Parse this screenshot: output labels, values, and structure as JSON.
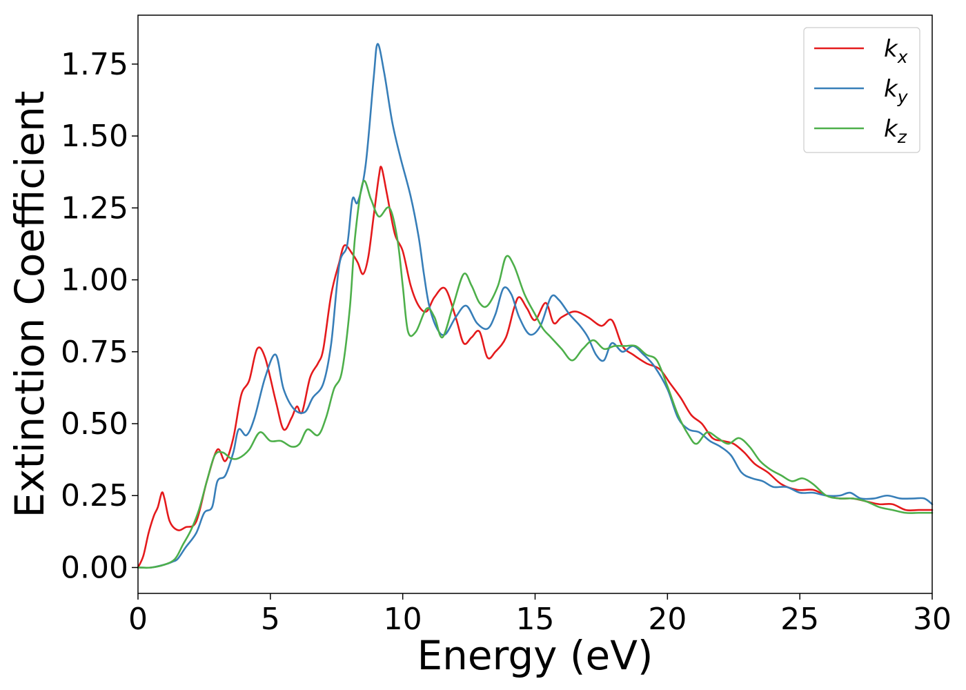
{
  "chart_data": {
    "type": "line",
    "xlabel": "Energy (eV)",
    "ylabel": "Extinction Coefficient",
    "xlim": [
      0,
      30
    ],
    "ylim": [
      -0.09,
      1.92
    ],
    "xticks": [
      0,
      5,
      10,
      15,
      20,
      25,
      30
    ],
    "xtick_labels": [
      "0",
      "5",
      "10",
      "15",
      "20",
      "25",
      "30"
    ],
    "yticks": [
      0.0,
      0.25,
      0.5,
      0.75,
      1.0,
      1.25,
      1.5,
      1.75
    ],
    "ytick_labels": [
      "0.00",
      "0.25",
      "0.50",
      "0.75",
      "1.00",
      "1.25",
      "1.50",
      "1.75"
    ],
    "grid": false,
    "legend_position": "top-right",
    "series": [
      {
        "name": "k_x",
        "label_base": "k",
        "label_sub": "x",
        "color": "#e41a1c",
        "points": [
          [
            0,
            0.0
          ],
          [
            0.2,
            0.04
          ],
          [
            0.4,
            0.12
          ],
          [
            0.6,
            0.18
          ],
          [
            0.75,
            0.21
          ],
          [
            0.9,
            0.26
          ],
          [
            1.0,
            0.24
          ],
          [
            1.2,
            0.16
          ],
          [
            1.5,
            0.13
          ],
          [
            1.8,
            0.14
          ],
          [
            2.2,
            0.16
          ],
          [
            2.6,
            0.3
          ],
          [
            3.0,
            0.41
          ],
          [
            3.3,
            0.37
          ],
          [
            3.6,
            0.45
          ],
          [
            3.9,
            0.6
          ],
          [
            4.2,
            0.65
          ],
          [
            4.5,
            0.76
          ],
          [
            4.8,
            0.73
          ],
          [
            5.2,
            0.58
          ],
          [
            5.5,
            0.48
          ],
          [
            5.8,
            0.52
          ],
          [
            6.0,
            0.56
          ],
          [
            6.2,
            0.54
          ],
          [
            6.5,
            0.66
          ],
          [
            6.8,
            0.71
          ],
          [
            7.0,
            0.76
          ],
          [
            7.3,
            0.95
          ],
          [
            7.6,
            1.06
          ],
          [
            7.8,
            1.12
          ],
          [
            8.1,
            1.09
          ],
          [
            8.3,
            1.06
          ],
          [
            8.5,
            1.02
          ],
          [
            8.7,
            1.08
          ],
          [
            8.9,
            1.22
          ],
          [
            9.1,
            1.36
          ],
          [
            9.2,
            1.39
          ],
          [
            9.4,
            1.3
          ],
          [
            9.7,
            1.16
          ],
          [
            10.0,
            1.1
          ],
          [
            10.3,
            0.98
          ],
          [
            10.6,
            0.91
          ],
          [
            10.9,
            0.89
          ],
          [
            11.2,
            0.94
          ],
          [
            11.6,
            0.97
          ],
          [
            12.0,
            0.87
          ],
          [
            12.3,
            0.78
          ],
          [
            12.6,
            0.8
          ],
          [
            12.9,
            0.82
          ],
          [
            13.2,
            0.73
          ],
          [
            13.5,
            0.75
          ],
          [
            13.9,
            0.8
          ],
          [
            14.2,
            0.9
          ],
          [
            14.4,
            0.94
          ],
          [
            14.7,
            0.9
          ],
          [
            15.0,
            0.86
          ],
          [
            15.4,
            0.92
          ],
          [
            15.7,
            0.85
          ],
          [
            16.0,
            0.87
          ],
          [
            16.5,
            0.89
          ],
          [
            17.0,
            0.87
          ],
          [
            17.5,
            0.84
          ],
          [
            17.9,
            0.86
          ],
          [
            18.3,
            0.77
          ],
          [
            18.7,
            0.74
          ],
          [
            19.2,
            0.71
          ],
          [
            19.7,
            0.69
          ],
          [
            20.1,
            0.64
          ],
          [
            20.5,
            0.59
          ],
          [
            20.9,
            0.53
          ],
          [
            21.3,
            0.5
          ],
          [
            21.7,
            0.45
          ],
          [
            22.1,
            0.44
          ],
          [
            22.5,
            0.43
          ],
          [
            22.9,
            0.4
          ],
          [
            23.3,
            0.36
          ],
          [
            23.8,
            0.33
          ],
          [
            24.3,
            0.29
          ],
          [
            24.9,
            0.27
          ],
          [
            25.5,
            0.27
          ],
          [
            26.0,
            0.25
          ],
          [
            26.5,
            0.24
          ],
          [
            27.0,
            0.24
          ],
          [
            27.5,
            0.23
          ],
          [
            28.0,
            0.22
          ],
          [
            28.5,
            0.22
          ],
          [
            29.0,
            0.2
          ],
          [
            29.5,
            0.2
          ],
          [
            30.0,
            0.2
          ]
        ]
      },
      {
        "name": "k_y",
        "label_base": "k",
        "label_sub": "y",
        "color": "#377eb8",
        "points": [
          [
            0,
            0.0
          ],
          [
            0.5,
            0.0
          ],
          [
            1.0,
            0.01
          ],
          [
            1.3,
            0.02
          ],
          [
            1.5,
            0.03
          ],
          [
            1.8,
            0.07
          ],
          [
            2.2,
            0.12
          ],
          [
            2.5,
            0.19
          ],
          [
            2.8,
            0.21
          ],
          [
            3.0,
            0.3
          ],
          [
            3.3,
            0.32
          ],
          [
            3.6,
            0.4
          ],
          [
            3.8,
            0.48
          ],
          [
            4.1,
            0.46
          ],
          [
            4.4,
            0.52
          ],
          [
            4.8,
            0.66
          ],
          [
            5.2,
            0.74
          ],
          [
            5.5,
            0.62
          ],
          [
            5.9,
            0.55
          ],
          [
            6.3,
            0.54
          ],
          [
            6.6,
            0.59
          ],
          [
            7.0,
            0.64
          ],
          [
            7.3,
            0.78
          ],
          [
            7.6,
            1.05
          ],
          [
            7.9,
            1.12
          ],
          [
            8.1,
            1.28
          ],
          [
            8.3,
            1.27
          ],
          [
            8.6,
            1.4
          ],
          [
            8.9,
            1.7
          ],
          [
            9.05,
            1.82
          ],
          [
            9.3,
            1.72
          ],
          [
            9.6,
            1.55
          ],
          [
            9.9,
            1.43
          ],
          [
            10.3,
            1.29
          ],
          [
            10.6,
            1.15
          ],
          [
            10.8,
            1.02
          ],
          [
            11.0,
            0.91
          ],
          [
            11.3,
            0.83
          ],
          [
            11.6,
            0.81
          ],
          [
            12.0,
            0.87
          ],
          [
            12.4,
            0.91
          ],
          [
            12.8,
            0.85
          ],
          [
            13.2,
            0.83
          ],
          [
            13.5,
            0.88
          ],
          [
            13.8,
            0.97
          ],
          [
            14.1,
            0.95
          ],
          [
            14.4,
            0.87
          ],
          [
            14.8,
            0.81
          ],
          [
            15.2,
            0.84
          ],
          [
            15.6,
            0.94
          ],
          [
            15.9,
            0.93
          ],
          [
            16.3,
            0.88
          ],
          [
            16.7,
            0.84
          ],
          [
            17.0,
            0.8
          ],
          [
            17.3,
            0.74
          ],
          [
            17.6,
            0.72
          ],
          [
            17.9,
            0.78
          ],
          [
            18.3,
            0.75
          ],
          [
            18.7,
            0.77
          ],
          [
            19.1,
            0.74
          ],
          [
            19.5,
            0.7
          ],
          [
            20.0,
            0.62
          ],
          [
            20.4,
            0.52
          ],
          [
            20.8,
            0.48
          ],
          [
            21.2,
            0.47
          ],
          [
            21.6,
            0.44
          ],
          [
            22.0,
            0.42
          ],
          [
            22.4,
            0.39
          ],
          [
            22.8,
            0.33
          ],
          [
            23.2,
            0.31
          ],
          [
            23.6,
            0.3
          ],
          [
            24.0,
            0.28
          ],
          [
            24.5,
            0.28
          ],
          [
            25.0,
            0.26
          ],
          [
            25.5,
            0.26
          ],
          [
            26.0,
            0.25
          ],
          [
            26.5,
            0.25
          ],
          [
            26.9,
            0.26
          ],
          [
            27.3,
            0.24
          ],
          [
            27.8,
            0.24
          ],
          [
            28.3,
            0.25
          ],
          [
            28.8,
            0.24
          ],
          [
            29.3,
            0.24
          ],
          [
            29.7,
            0.24
          ],
          [
            30.0,
            0.22
          ]
        ]
      },
      {
        "name": "k_z",
        "label_base": "k",
        "label_sub": "z",
        "color": "#4daf4a",
        "points": [
          [
            0,
            0.0
          ],
          [
            0.5,
            0.0
          ],
          [
            1.0,
            0.01
          ],
          [
            1.4,
            0.03
          ],
          [
            1.7,
            0.08
          ],
          [
            2.0,
            0.13
          ],
          [
            2.3,
            0.2
          ],
          [
            2.6,
            0.3
          ],
          [
            2.9,
            0.39
          ],
          [
            3.2,
            0.4
          ],
          [
            3.5,
            0.38
          ],
          [
            3.8,
            0.38
          ],
          [
            4.2,
            0.41
          ],
          [
            4.6,
            0.47
          ],
          [
            5.0,
            0.44
          ],
          [
            5.4,
            0.44
          ],
          [
            5.8,
            0.42
          ],
          [
            6.1,
            0.43
          ],
          [
            6.4,
            0.48
          ],
          [
            6.8,
            0.46
          ],
          [
            7.1,
            0.52
          ],
          [
            7.4,
            0.62
          ],
          [
            7.7,
            0.68
          ],
          [
            8.0,
            0.9
          ],
          [
            8.2,
            1.15
          ],
          [
            8.5,
            1.34
          ],
          [
            8.8,
            1.28
          ],
          [
            9.1,
            1.22
          ],
          [
            9.5,
            1.25
          ],
          [
            9.8,
            1.14
          ],
          [
            10.0,
            0.98
          ],
          [
            10.2,
            0.82
          ],
          [
            10.5,
            0.82
          ],
          [
            10.9,
            0.9
          ],
          [
            11.2,
            0.87
          ],
          [
            11.5,
            0.8
          ],
          [
            11.9,
            0.91
          ],
          [
            12.3,
            1.02
          ],
          [
            12.6,
            0.98
          ],
          [
            12.9,
            0.92
          ],
          [
            13.2,
            0.91
          ],
          [
            13.6,
            0.98
          ],
          [
            13.9,
            1.08
          ],
          [
            14.2,
            1.05
          ],
          [
            14.6,
            0.95
          ],
          [
            15.0,
            0.88
          ],
          [
            15.3,
            0.83
          ],
          [
            15.6,
            0.8
          ],
          [
            16.0,
            0.76
          ],
          [
            16.4,
            0.72
          ],
          [
            16.8,
            0.76
          ],
          [
            17.2,
            0.79
          ],
          [
            17.6,
            0.76
          ],
          [
            18.0,
            0.77
          ],
          [
            18.4,
            0.77
          ],
          [
            18.8,
            0.77
          ],
          [
            19.2,
            0.74
          ],
          [
            19.6,
            0.72
          ],
          [
            20.0,
            0.63
          ],
          [
            20.4,
            0.53
          ],
          [
            20.8,
            0.46
          ],
          [
            21.1,
            0.43
          ],
          [
            21.5,
            0.47
          ],
          [
            21.9,
            0.45
          ],
          [
            22.3,
            0.43
          ],
          [
            22.7,
            0.45
          ],
          [
            23.1,
            0.42
          ],
          [
            23.5,
            0.37
          ],
          [
            23.9,
            0.34
          ],
          [
            24.3,
            0.32
          ],
          [
            24.7,
            0.3
          ],
          [
            25.1,
            0.31
          ],
          [
            25.5,
            0.29
          ],
          [
            26.0,
            0.25
          ],
          [
            26.5,
            0.24
          ],
          [
            27.0,
            0.24
          ],
          [
            27.5,
            0.23
          ],
          [
            28.0,
            0.21
          ],
          [
            28.5,
            0.2
          ],
          [
            29.0,
            0.19
          ],
          [
            29.5,
            0.19
          ],
          [
            30.0,
            0.19
          ]
        ]
      }
    ]
  }
}
